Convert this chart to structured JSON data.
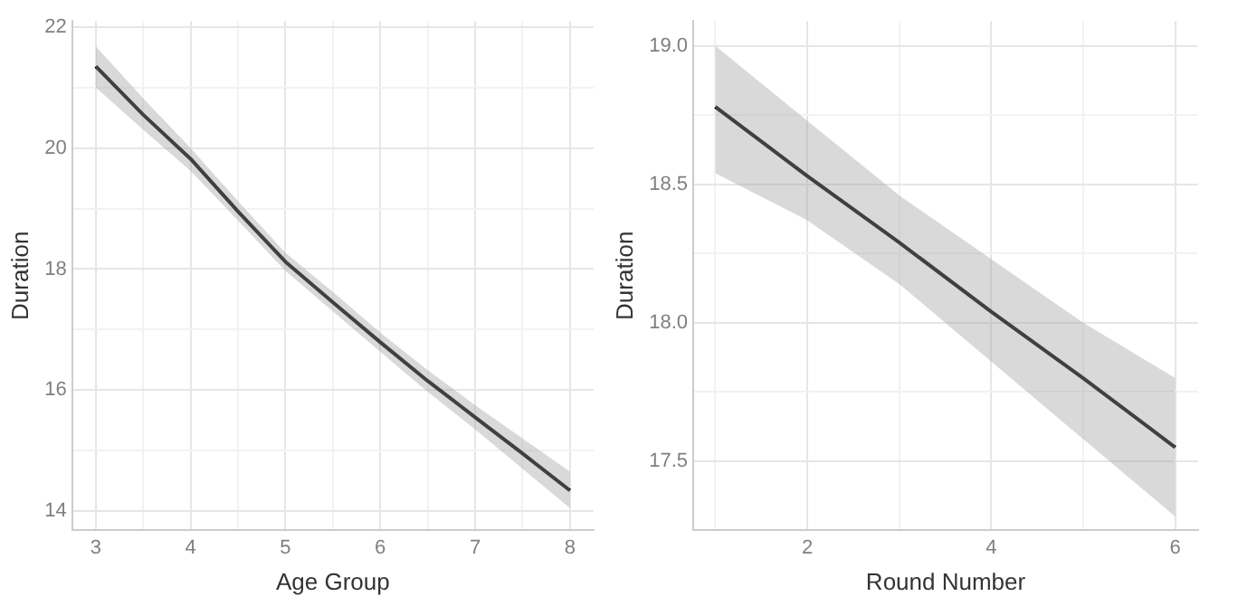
{
  "chart_data": [
    {
      "type": "line",
      "xlabel": "Age Group",
      "ylabel": "Duration",
      "x": [
        3,
        3.5,
        4,
        4.5,
        5,
        5.5,
        6,
        6.5,
        7,
        7.5,
        8
      ],
      "series": [
        {
          "color": "#000000",
          "values": [
            21.35,
            20.55,
            19.82,
            18.95,
            18.12,
            17.45,
            16.79,
            16.15,
            15.55,
            14.95,
            14.34
          ],
          "lower": [
            21.0,
            20.3,
            19.62,
            18.8,
            17.97,
            17.3,
            16.63,
            15.97,
            15.35,
            14.7,
            14.05
          ],
          "upper": [
            21.68,
            20.82,
            20.0,
            19.12,
            18.27,
            17.62,
            16.95,
            16.33,
            15.75,
            15.2,
            14.65
          ]
        }
      ],
      "xlim": [
        2.75,
        8.25
      ],
      "ylim": [
        13.68,
        22.1
      ],
      "xticks": [
        3,
        {
          "value": 3.5,
          "label": null
        },
        4,
        {
          "value": 4.5,
          "label": null
        },
        5,
        {
          "value": 5.5,
          "label": null
        },
        6,
        {
          "value": 6.5,
          "label": null
        },
        7,
        {
          "value": 7.5,
          "label": null
        },
        8
      ],
      "yticks": [
        14,
        {
          "value": 15,
          "label": null
        },
        16,
        {
          "value": 17,
          "label": null
        },
        18,
        {
          "value": 19,
          "label": null
        },
        20,
        {
          "value": 21,
          "label": null
        },
        22
      ],
      "grid": true,
      "legend": false,
      "marker": "none",
      "line_style": "solid"
    },
    {
      "type": "line",
      "xlabel": "Round Number",
      "ylabel": "Duration",
      "x": [
        1,
        2,
        3,
        4,
        5,
        6
      ],
      "series": [
        {
          "color": "#000000",
          "values": [
            18.78,
            18.53,
            18.29,
            18.04,
            17.8,
            17.55
          ],
          "lower": [
            18.54,
            18.37,
            18.14,
            17.86,
            17.58,
            17.3
          ],
          "upper": [
            19.0,
            18.73,
            18.46,
            18.23,
            18.0,
            17.8
          ]
        }
      ],
      "xlim": [
        0.76,
        6.25
      ],
      "ylim": [
        17.25,
        19.09
      ],
      "xticks": [
        {
          "value": 1,
          "label": null
        },
        2,
        {
          "value": 3,
          "label": null
        },
        4,
        {
          "value": 5,
          "label": null
        },
        6
      ],
      "yticks": [
        17.5,
        {
          "value": 17.75,
          "label": null
        },
        {
          "value": 18,
          "label": "18.0"
        },
        {
          "value": 18.25,
          "label": null
        },
        18.5,
        {
          "value": 18.75,
          "label": null
        },
        {
          "value": 19,
          "label": "19.0"
        }
      ],
      "grid": true,
      "legend": false,
      "marker": "none",
      "line_style": "solid"
    }
  ]
}
